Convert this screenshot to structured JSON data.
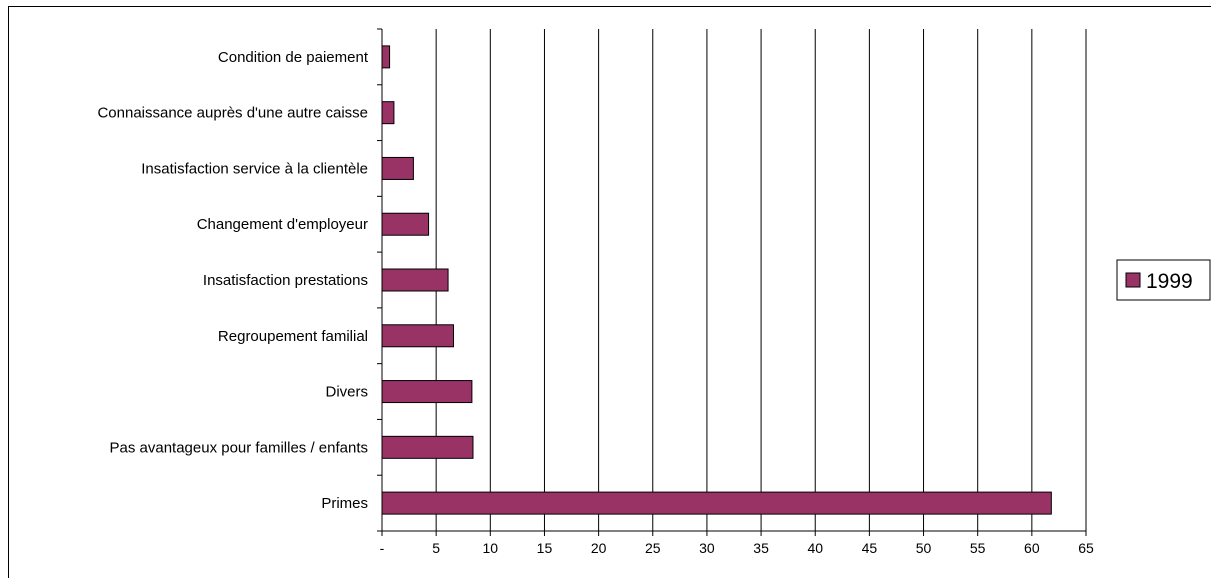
{
  "chart_data": {
    "type": "bar",
    "orientation": "horizontal",
    "categories": [
      "Primes",
      "Pas avantageux pour familles / enfants",
      "Divers",
      "Regroupement familial",
      "Insatisfaction prestations",
      "Changement d'employeur",
      "Insatisfaction service à la clientèle",
      "Connaissance auprès d'une autre caisse",
      "Condition de paiement"
    ],
    "series": [
      {
        "name": "1999",
        "values": [
          61.8,
          8.4,
          8.3,
          6.6,
          6.1,
          4.3,
          2.9,
          1.1,
          0.7
        ],
        "color": "#993366"
      }
    ],
    "x_ticks": [
      "-",
      "5",
      "10",
      "15",
      "20",
      "25",
      "30",
      "35",
      "40",
      "45",
      "50",
      "55",
      "60",
      "65"
    ],
    "xlim": [
      0,
      65
    ],
    "grid": "vertical",
    "legend_position": "right"
  }
}
